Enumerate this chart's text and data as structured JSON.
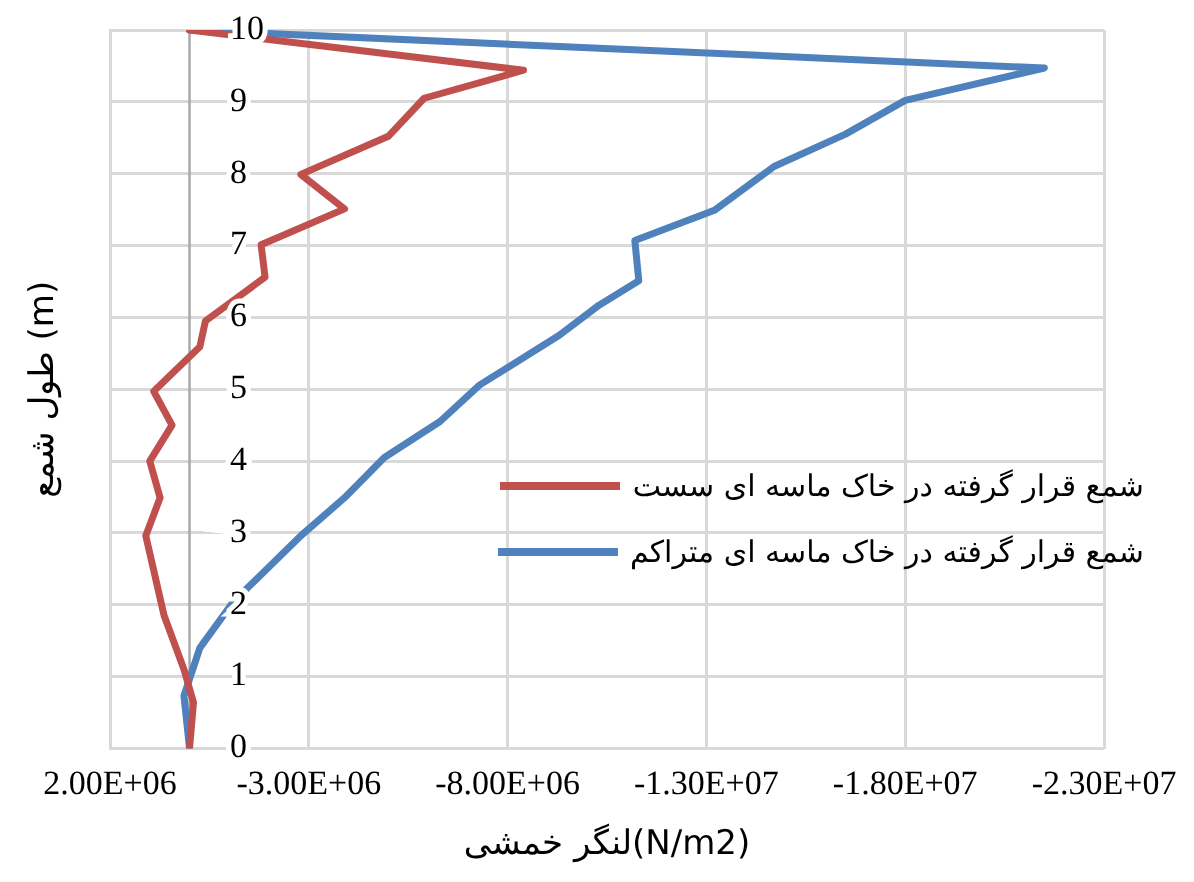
{
  "chart_data": {
    "type": "line",
    "xlabel": "لنگر خمشی(N/m2)",
    "ylabel": "طول شمع (m)",
    "xlim": [
      2000000,
      -23000000
    ],
    "xticks": [
      {
        "value": 2000000,
        "label": "2.00E+06"
      },
      {
        "value": -3000000,
        "label": "-3.00E+06"
      },
      {
        "value": -8000000,
        "label": "-8.00E+06"
      },
      {
        "value": -13000000,
        "label": "-1.30E+07"
      },
      {
        "value": -18000000,
        "label": "-1.80E+07"
      },
      {
        "value": -23000000,
        "label": "-2.30E+07"
      }
    ],
    "ylim": [
      0,
      10
    ],
    "yticks": [
      0,
      1,
      2,
      3,
      4,
      5,
      6,
      7,
      8,
      9,
      10
    ],
    "grid": true,
    "legend": "right",
    "marker": "none",
    "line_style": "solid",
    "series": [
      {
        "name": "شمع قرار گرفته در خاک ماسه ای سست",
        "color": "#c0504d",
        "x": [
          0,
          -8400000,
          -5900000,
          -5000000,
          -2800000,
          -3900000,
          -1800000,
          -1900000,
          -400000,
          -260000,
          900000,
          440000,
          1000000,
          740000,
          1100000,
          640000,
          140000,
          -100000,
          0
        ],
        "values": [
          10,
          9.44,
          9.05,
          8.52,
          7.99,
          7.51,
          7.01,
          6.56,
          5.95,
          5.59,
          4.97,
          4.5,
          4.0,
          3.49,
          2.96,
          1.85,
          1.1,
          0.64,
          0
        ]
      },
      {
        "name": "شمع قرار گرفته در خاک ماسه ای متراکم",
        "color": "#4f81bd",
        "x": [
          0,
          -21500000,
          -18000000,
          -16500000,
          -14700000,
          -13200000,
          -11200000,
          -11300000,
          -10300000,
          -9300000,
          -7300000,
          -6300000,
          -4900000,
          -3900000,
          -2800000,
          -1100000,
          -260000,
          140000,
          0
        ],
        "values": [
          10,
          9.47,
          9.02,
          8.55,
          8.1,
          7.49,
          7.07,
          6.51,
          6.17,
          5.75,
          5.06,
          4.55,
          4.05,
          3.49,
          2.96,
          2.04,
          1.4,
          0.73,
          0
        ]
      }
    ]
  }
}
